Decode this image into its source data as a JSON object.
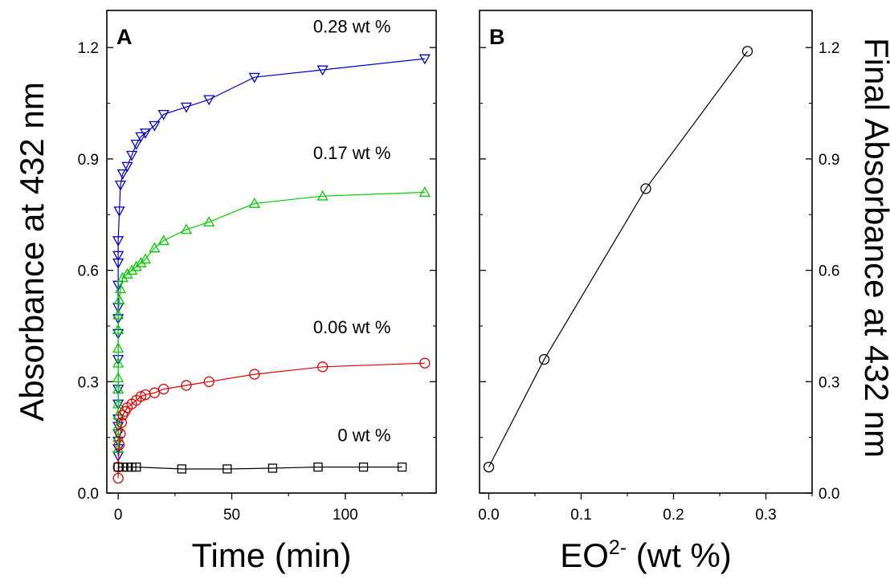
{
  "chart_data": [
    {
      "panel_label": "A",
      "type": "scatter",
      "xlabel": "Time (min)",
      "ylabel": "Absorbance at 432 nm",
      "xlim": [
        -5,
        140
      ],
      "ylim": [
        0.0,
        1.3
      ],
      "xticks": [
        0,
        50,
        100
      ],
      "xtick_labels": [
        "0",
        "50",
        "100"
      ],
      "yticks": [
        0.0,
        0.3,
        0.6,
        0.9,
        1.2
      ],
      "ytick_labels": [
        "0.0",
        "0.3",
        "0.6",
        "0.9",
        "1.2"
      ],
      "grid": false,
      "series": [
        {
          "label": "0.28 wt %",
          "label_at": [
            120,
            1.24
          ],
          "marker": "triangle-down",
          "color": "#0000cc",
          "points": [
            [
              0,
              0.1
            ],
            [
              0,
              0.12
            ],
            [
              0,
              0.14
            ],
            [
              0,
              0.16
            ],
            [
              0,
              0.18
            ],
            [
              0,
              0.2
            ],
            [
              0,
              0.24
            ],
            [
              0,
              0.28
            ],
            [
              0,
              0.36
            ],
            [
              0,
              0.43
            ],
            [
              0,
              0.47
            ],
            [
              0,
              0.5
            ],
            [
              0,
              0.56
            ],
            [
              0,
              0.62
            ],
            [
              0,
              0.64
            ],
            [
              0,
              0.68
            ],
            [
              0.5,
              0.76
            ],
            [
              1,
              0.83
            ],
            [
              2,
              0.86
            ],
            [
              4,
              0.88
            ],
            [
              6,
              0.91
            ],
            [
              8,
              0.94
            ],
            [
              10,
              0.96
            ],
            [
              12,
              0.97
            ],
            [
              16,
              0.99
            ],
            [
              20,
              1.02
            ],
            [
              30,
              1.04
            ],
            [
              40,
              1.06
            ],
            [
              60,
              1.12
            ],
            [
              90,
              1.14
            ],
            [
              135,
              1.17
            ]
          ]
        },
        {
          "label": "0.17 wt %",
          "label_at": [
            120,
            0.9
          ],
          "marker": "triangle-up",
          "color": "#00cc00",
          "points": [
            [
              0,
              0.12
            ],
            [
              0,
              0.15
            ],
            [
              0,
              0.18
            ],
            [
              0,
              0.21
            ],
            [
              0,
              0.24
            ],
            [
              0,
              0.28
            ],
            [
              0,
              0.31
            ],
            [
              0,
              0.35
            ],
            [
              0,
              0.39
            ],
            [
              0,
              0.44
            ],
            [
              0,
              0.48
            ],
            [
              0.5,
              0.52
            ],
            [
              1,
              0.55
            ],
            [
              2,
              0.58
            ],
            [
              4,
              0.59
            ],
            [
              6,
              0.6
            ],
            [
              8,
              0.61
            ],
            [
              10,
              0.62
            ],
            [
              12,
              0.63
            ],
            [
              16,
              0.66
            ],
            [
              20,
              0.68
            ],
            [
              30,
              0.71
            ],
            [
              40,
              0.73
            ],
            [
              60,
              0.78
            ],
            [
              90,
              0.8
            ],
            [
              135,
              0.81
            ]
          ]
        },
        {
          "label": "0.06 wt %",
          "label_at": [
            120,
            0.43
          ],
          "marker": "circle",
          "color": "#dd0000",
          "points": [
            [
              0,
              0.04
            ],
            [
              0,
              0.07
            ],
            [
              0.5,
              0.13
            ],
            [
              1,
              0.16
            ],
            [
              1.5,
              0.19
            ],
            [
              2,
              0.21
            ],
            [
              3,
              0.22
            ],
            [
              4,
              0.23
            ],
            [
              6,
              0.24
            ],
            [
              8,
              0.25
            ],
            [
              10,
              0.26
            ],
            [
              12,
              0.265
            ],
            [
              16,
              0.27
            ],
            [
              20,
              0.28
            ],
            [
              30,
              0.29
            ],
            [
              40,
              0.3
            ],
            [
              60,
              0.32
            ],
            [
              90,
              0.34
            ],
            [
              135,
              0.35
            ]
          ]
        },
        {
          "label": "0 wt %",
          "label_at": [
            120,
            0.14
          ],
          "marker": "square",
          "color": "#000000",
          "points": [
            [
              0,
              0.07
            ],
            [
              2,
              0.07
            ],
            [
              4,
              0.07
            ],
            [
              6,
              0.07
            ],
            [
              8,
              0.07
            ],
            [
              28,
              0.065
            ],
            [
              48,
              0.065
            ],
            [
              68,
              0.067
            ],
            [
              88,
              0.07
            ],
            [
              108,
              0.07
            ],
            [
              125,
              0.07
            ]
          ]
        }
      ]
    },
    {
      "panel_label": "B",
      "type": "line",
      "xlabel_main": "EO",
      "xlabel_sup": "2-",
      "xlabel_rest": " (wt %)",
      "ylabel": "Final Absorbance at 432 nm",
      "xlim": [
        -0.01,
        0.35
      ],
      "ylim": [
        0.0,
        1.3
      ],
      "xticks": [
        0.0,
        0.1,
        0.2,
        0.3
      ],
      "xtick_labels": [
        "0.0",
        "0.1",
        "0.2",
        "0.3"
      ],
      "yticks": [
        0.0,
        0.3,
        0.6,
        0.9,
        1.2
      ],
      "ytick_labels": [
        "0.0",
        "0.3",
        "0.6",
        "0.9",
        "1.2"
      ],
      "grid": false,
      "series": [
        {
          "marker": "circle",
          "color": "#000000",
          "x": [
            0.0,
            0.06,
            0.17,
            0.28
          ],
          "y": [
            0.07,
            0.36,
            0.82,
            1.19
          ]
        }
      ]
    }
  ]
}
